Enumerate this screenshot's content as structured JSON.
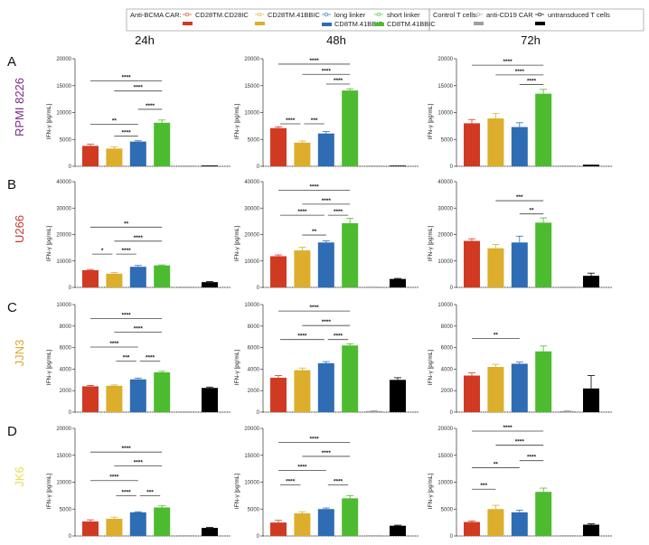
{
  "legend": {
    "group1_title": "Anti-BCMA CAR:",
    "group2_title": "Control T cells:",
    "items": [
      {
        "label": "CD28TM.CD28IC",
        "label2": "",
        "color": "#d13a22"
      },
      {
        "label": "CD28TM.41BBIC",
        "label2": "",
        "color": "#dcae2b"
      },
      {
        "label": "long linker",
        "label2": "CD8TM.41BBIC",
        "color": "#2e6cb4"
      },
      {
        "label": "short linker",
        "label2": "CD8TM.41BBIC",
        "color": "#4dbb2f"
      },
      {
        "label": "anti-CD19 CAR",
        "label2": "",
        "color": "#9e9e9e"
      },
      {
        "label": "untransduced T cells",
        "label2": "",
        "color": "#000000"
      }
    ]
  },
  "columns": [
    "24h",
    "48h",
    "72h"
  ],
  "rows": [
    {
      "letter": "A",
      "cell_line": "RPMI 8226",
      "color": "#7b2a8c"
    },
    {
      "letter": "B",
      "cell_line": "U266",
      "color": "#c8372d"
    },
    {
      "letter": "C",
      "cell_line": "JJN3",
      "color": "#e0a62a"
    },
    {
      "letter": "D",
      "cell_line": "JK6",
      "color": "#e4e04c"
    }
  ],
  "chart_data": [
    {
      "type": "bar",
      "row": "A",
      "time": "24h",
      "ylabel": "IFN-γ [pg/mL]",
      "ylim": [
        0,
        20000
      ],
      "yticks": [
        "0",
        "5000",
        "10000",
        "15000",
        "20000"
      ],
      "values": [
        3800,
        3300,
        4600,
        8100,
        50,
        150
      ],
      "errors": [
        300,
        300,
        150,
        500,
        0,
        0
      ],
      "significance": [
        [
          0,
          3,
          "****"
        ],
        [
          1,
          3,
          "****"
        ],
        [
          2,
          3,
          "****"
        ],
        [
          0,
          2,
          "**"
        ],
        [
          1,
          2,
          "****"
        ]
      ]
    },
    {
      "type": "bar",
      "row": "A",
      "time": "48h",
      "ylabel": "IFN-γ [pg/mL]",
      "ylim": [
        0,
        20000
      ],
      "yticks": [
        "0",
        "5000",
        "10000",
        "15000",
        "20000"
      ],
      "values": [
        7100,
        4400,
        6100,
        14100,
        50,
        100
      ],
      "errors": [
        250,
        300,
        350,
        300,
        0,
        0
      ],
      "significance": [
        [
          0,
          3,
          "****"
        ],
        [
          1,
          3,
          "****"
        ],
        [
          2,
          3,
          "****"
        ],
        [
          0,
          1,
          "****"
        ],
        [
          1,
          2,
          "***"
        ]
      ]
    },
    {
      "type": "bar",
      "row": "A",
      "time": "72h",
      "ylabel": "IFN-γ [pg/mL]",
      "ylim": [
        0,
        20000
      ],
      "yticks": [
        "0",
        "5000",
        "10000",
        "15000",
        "20000"
      ],
      "values": [
        8000,
        8900,
        7300,
        13500,
        50,
        300
      ],
      "errors": [
        700,
        900,
        800,
        800,
        0,
        0
      ],
      "significance": [
        [
          0,
          3,
          "****"
        ],
        [
          1,
          3,
          "****"
        ],
        [
          2,
          3,
          "****"
        ]
      ]
    },
    {
      "type": "bar",
      "row": "B",
      "time": "24h",
      "ylabel": "IFN-γ [pg/mL]",
      "ylim": [
        0,
        40000
      ],
      "yticks": [
        "0",
        "10000",
        "20000",
        "30000",
        "40000"
      ],
      "values": [
        6500,
        5200,
        7800,
        8300,
        0,
        2000
      ],
      "errors": [
        300,
        400,
        500,
        200,
        0,
        200
      ],
      "significance": [
        [
          0,
          3,
          "**"
        ],
        [
          1,
          3,
          "****"
        ],
        [
          0,
          1,
          "*"
        ],
        [
          1,
          2,
          "****"
        ]
      ]
    },
    {
      "type": "bar",
      "row": "B",
      "time": "48h",
      "ylabel": "IFN-γ [pg/mL]",
      "ylim": [
        0,
        40000
      ],
      "yticks": [
        "0",
        "10000",
        "20000",
        "30000",
        "40000"
      ],
      "values": [
        11800,
        14000,
        17000,
        24300,
        100,
        3200
      ],
      "errors": [
        500,
        1200,
        600,
        1800,
        0,
        200
      ],
      "significance": [
        [
          0,
          3,
          "****"
        ],
        [
          1,
          3,
          "****"
        ],
        [
          0,
          2,
          "****"
        ],
        [
          2,
          3,
          "****"
        ],
        [
          1,
          2,
          "**"
        ]
      ]
    },
    {
      "type": "bar",
      "row": "B",
      "time": "72h",
      "ylabel": "IFN-γ [pg/mL]",
      "ylim": [
        0,
        40000
      ],
      "yticks": [
        "0",
        "10000",
        "20000",
        "30000",
        "40000"
      ],
      "values": [
        17600,
        14800,
        17000,
        24500,
        100,
        4400
      ],
      "errors": [
        800,
        1400,
        2400,
        1800,
        0,
        1000
      ],
      "significance": [
        [
          1,
          3,
          "***"
        ],
        [
          2,
          3,
          "**"
        ]
      ]
    },
    {
      "type": "bar",
      "row": "C",
      "time": "24h",
      "ylabel": "IFN-γ [pg/mL]",
      "ylim": [
        0,
        10000
      ],
      "yticks": [
        "0",
        "2000",
        "4000",
        "6000",
        "8000",
        "10000"
      ],
      "values": [
        2400,
        2450,
        3050,
        3700,
        50,
        2250
      ],
      "errors": [
        80,
        80,
        120,
        100,
        0,
        80
      ],
      "significance": [
        [
          0,
          3,
          "****"
        ],
        [
          1,
          3,
          "****"
        ],
        [
          0,
          2,
          "****"
        ],
        [
          1,
          2,
          "***"
        ],
        [
          2,
          3,
          "****"
        ]
      ]
    },
    {
      "type": "bar",
      "row": "C",
      "time": "48h",
      "ylabel": "IFN-γ [pg/mL]",
      "ylim": [
        0,
        10000
      ],
      "yticks": [
        "0",
        "2000",
        "4000",
        "6000",
        "8000",
        "10000"
      ],
      "values": [
        3200,
        3900,
        4550,
        6200,
        100,
        3000
      ],
      "errors": [
        200,
        200,
        150,
        150,
        30,
        200
      ],
      "significance": [
        [
          0,
          3,
          "****"
        ],
        [
          1,
          3,
          "****"
        ],
        [
          0,
          2,
          "****"
        ],
        [
          2,
          3,
          "****"
        ]
      ]
    },
    {
      "type": "bar",
      "row": "C",
      "time": "72h",
      "ylabel": "IFN-γ [pg/mL]",
      "ylim": [
        0,
        10000
      ],
      "yticks": [
        "0",
        "2000",
        "4000",
        "6000",
        "8000",
        "10000"
      ],
      "values": [
        3400,
        4200,
        4500,
        5650,
        100,
        2200
      ],
      "errors": [
        250,
        250,
        150,
        500,
        30,
        1200
      ],
      "significance": [
        [
          0,
          2,
          "**"
        ]
      ]
    },
    {
      "type": "bar",
      "row": "D",
      "time": "24h",
      "ylabel": "IFN-γ [pg/mL]",
      "ylim": [
        0,
        20000
      ],
      "yticks": [
        "0",
        "5000",
        "10000",
        "15000",
        "20000"
      ],
      "values": [
        2700,
        3200,
        4400,
        5300,
        50,
        1500
      ],
      "errors": [
        300,
        300,
        100,
        300,
        0,
        100
      ],
      "significance": [
        [
          0,
          3,
          "****"
        ],
        [
          1,
          3,
          "****"
        ],
        [
          0,
          2,
          "****"
        ],
        [
          1,
          2,
          "****"
        ],
        [
          2,
          3,
          "***"
        ]
      ]
    },
    {
      "type": "bar",
      "row": "D",
      "time": "48h",
      "ylabel": "IFN-γ [pg/mL]",
      "ylim": [
        0,
        20000
      ],
      "yticks": [
        "0",
        "5000",
        "10000",
        "15000",
        "20000"
      ],
      "values": [
        2500,
        4200,
        5000,
        7000,
        100,
        1900
      ],
      "errors": [
        400,
        300,
        200,
        500,
        0,
        100
      ],
      "significance": [
        [
          0,
          3,
          "****"
        ],
        [
          1,
          3,
          "****"
        ],
        [
          0,
          2,
          "****"
        ],
        [
          0,
          1,
          "****"
        ],
        [
          2,
          3,
          "****"
        ]
      ]
    },
    {
      "type": "bar",
      "row": "D",
      "time": "72h",
      "ylabel": "IFN-γ [pg/mL]",
      "ylim": [
        0,
        20000
      ],
      "yticks": [
        "0",
        "5000",
        "10000",
        "15000",
        "20000"
      ],
      "values": [
        2600,
        5000,
        4400,
        8200,
        50,
        2100
      ],
      "errors": [
        200,
        700,
        400,
        700,
        0,
        150
      ],
      "significance": [
        [
          0,
          3,
          "****"
        ],
        [
          1,
          3,
          "****"
        ],
        [
          2,
          3,
          "****"
        ],
        [
          0,
          2,
          "**"
        ],
        [
          0,
          1,
          "***"
        ]
      ]
    }
  ]
}
